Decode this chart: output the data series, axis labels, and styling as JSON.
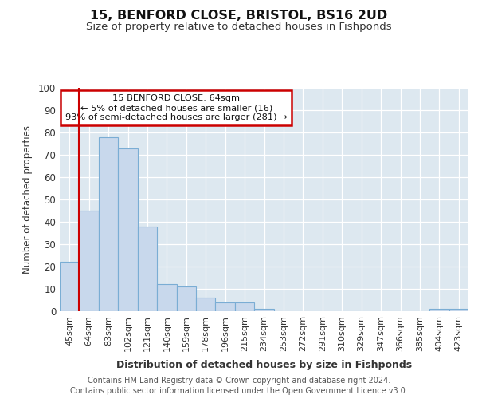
{
  "title": "15, BENFORD CLOSE, BRISTOL, BS16 2UD",
  "subtitle": "Size of property relative to detached houses in Fishponds",
  "xlabel": "Distribution of detached houses by size in Fishponds",
  "ylabel": "Number of detached properties",
  "bar_labels": [
    "45sqm",
    "64sqm",
    "83sqm",
    "102sqm",
    "121sqm",
    "140sqm",
    "159sqm",
    "178sqm",
    "196sqm",
    "215sqm",
    "234sqm",
    "253sqm",
    "272sqm",
    "291sqm",
    "310sqm",
    "329sqm",
    "347sqm",
    "366sqm",
    "385sqm",
    "404sqm",
    "423sqm"
  ],
  "bar_values": [
    22,
    45,
    78,
    73,
    38,
    12,
    11,
    6,
    4,
    4,
    1,
    0,
    0,
    0,
    0,
    0,
    0,
    0,
    0,
    1,
    1
  ],
  "bar_color": "#c8d8ec",
  "bar_edge_color": "#7aadd4",
  "highlight_bar_index": 1,
  "highlight_line_color": "#cc0000",
  "annotation_line1": "15 BENFORD CLOSE: 64sqm",
  "annotation_line2": "← 5% of detached houses are smaller (16)",
  "annotation_line3": "93% of semi-detached houses are larger (281) →",
  "annotation_box_color": "#cc0000",
  "ylim": [
    0,
    100
  ],
  "yticks": [
    0,
    10,
    20,
    30,
    40,
    50,
    60,
    70,
    80,
    90,
    100
  ],
  "fig_bg_color": "#ffffff",
  "plot_bg_color": "#dde8f0",
  "grid_color": "#ffffff",
  "footer1": "Contains HM Land Registry data © Crown copyright and database right 2024.",
  "footer2": "Contains public sector information licensed under the Open Government Licence v3.0."
}
